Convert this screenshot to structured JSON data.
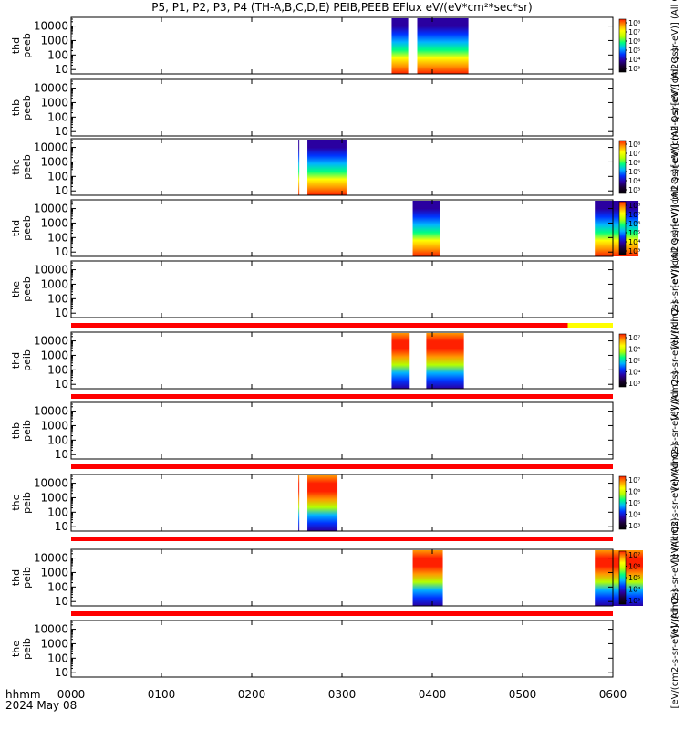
{
  "title": "P5, P1, P2, P3, P4 (TH-A,B,C,D,E) PEIB,PEEB EFlux eV/(eV*cm²*sec*sr)",
  "colors": {
    "flag_red": "#ff0000",
    "flag_yellow": "#ffff00",
    "spectrogram_ramp": [
      "#1a0033",
      "#2a00a0",
      "#0033ff",
      "#00b4ff",
      "#00ff80",
      "#b4ff00",
      "#ffff00",
      "#ff9900",
      "#ff2000"
    ]
  },
  "footer": {
    "x_axis_label": "hhmm",
    "date_label": "2024 May 08"
  },
  "chart_data": {
    "type": "heatmap",
    "xlim": [
      "0000",
      "0600"
    ],
    "x_tick_labels": [
      "0000",
      "0100",
      "0200",
      "0300",
      "0400",
      "0500",
      "0600"
    ],
    "y_scale": "log",
    "ylim": [
      5,
      40000
    ],
    "y_tick_labels": [
      "10",
      "100",
      "1000",
      "10000"
    ],
    "panels": [
      {
        "label_top": "thd",
        "label_bottom": "peeb",
        "has_data": true,
        "colorbar": {
          "label": "[eV/(cm2-s-sr-eV)] (All Qs)",
          "tick_labels": [
            "10³",
            "10⁴",
            "10⁵",
            "10⁶",
            "10⁷",
            "10⁸"
          ]
        },
        "blocks": [
          {
            "start": "0333",
            "end": "0344"
          },
          {
            "start": "0350",
            "end": "0384"
          }
        ]
      },
      {
        "label_top": "thb",
        "label_bottom": "peeb",
        "has_data": false,
        "colorbar": {
          "label": "[eV/(cm2-s-sr-eV)] (All Qs)",
          "tick_labels": []
        },
        "blocks": []
      },
      {
        "label_top": "thc",
        "label_bottom": "peeb",
        "has_data": true,
        "colorbar": {
          "label": "[eV/(cm2-s-sr-eV)] (All Qs)",
          "tick_labels": [
            "10³",
            "10⁴",
            "10⁵",
            "10⁶",
            "10⁷",
            "10⁸"
          ]
        },
        "blocks": [
          {
            "start": "0191",
            "end": "0220"
          },
          {
            "start": "0237",
            "end": "0263"
          }
        ]
      },
      {
        "label_top": "thd",
        "label_bottom": "peeb",
        "has_data": true,
        "colorbar": {
          "label": "[eV/(cm2-s-sr-eV)] (All Qs)",
          "tick_labels": [
            "10³",
            "10⁴",
            "10⁵",
            "10⁶",
            "10⁷",
            "10⁸"
          ]
        },
        "blocks": [
          {
            "start": "0347",
            "end": "0365"
          },
          {
            "start": "0548",
            "end": "0577"
          }
        ]
      },
      {
        "label_top": "the",
        "label_bottom": "peeb",
        "has_data": false,
        "colorbar": {
          "label": "[eV/(cm2-s-sr-eV)] (All Qs)",
          "tick_labels": []
        },
        "blocks": []
      },
      {
        "label_top": "thd",
        "label_bottom": "peib",
        "has_data": true,
        "colorbar": {
          "label": "[eV/(cm2-s-sr-eV)] (All Qs)",
          "tick_labels": [
            "10³",
            "10⁴",
            "10⁵",
            "10⁶",
            "10⁷"
          ]
        },
        "blocks": [
          {
            "start": "0333",
            "end": "0345"
          },
          {
            "start": "0356",
            "end": "0381"
          }
        ]
      },
      {
        "label_top": "thb",
        "label_bottom": "peib",
        "has_data": false,
        "colorbar": {
          "label": "[eV/(cm2-s-sr-eV)] (All Qs)",
          "tick_labels": []
        },
        "blocks": []
      },
      {
        "label_top": "thc",
        "label_bottom": "peib",
        "has_data": true,
        "colorbar": {
          "label": "[eV/(cm2-s-sr-eV)] (All Qs)",
          "tick_labels": [
            "10³",
            "10⁴",
            "10⁵",
            "10⁶",
            "10⁷"
          ]
        },
        "blocks": [
          {
            "start": "0191",
            "end": "0220"
          },
          {
            "start": "0237",
            "end": "0257"
          }
        ]
      },
      {
        "label_top": "thd",
        "label_bottom": "peib",
        "has_data": true,
        "colorbar": {
          "label": "[eV/(cm2-s-sr-eV)] (All Qs)",
          "tick_labels": [
            "10³",
            "10⁴",
            "10⁵",
            "10⁶",
            "10⁷"
          ]
        },
        "blocks": [
          {
            "start": "0347",
            "end": "0367"
          },
          {
            "start": "0548",
            "end": "0580"
          }
        ]
      },
      {
        "label_top": "the",
        "label_bottom": "peib",
        "has_data": false,
        "colorbar": {
          "label": "[eV/(cm2-s-sr-eV)] (All Qs)",
          "tick_labels": []
        },
        "blocks": []
      }
    ],
    "flag_bars": [
      {
        "after_panel": 5,
        "segments": [
          {
            "start": "0000",
            "end": "0530",
            "color": "red"
          },
          {
            "start": "0530",
            "end": "0600",
            "color": "yellow"
          }
        ]
      },
      {
        "after_panel": 6,
        "segments": [
          {
            "start": "0000",
            "end": "0600",
            "color": "red"
          }
        ]
      },
      {
        "after_panel": 7,
        "segments": [
          {
            "start": "0000",
            "end": "0600",
            "color": "red"
          }
        ]
      },
      {
        "after_panel": 8,
        "segments": [
          {
            "start": "0000",
            "end": "0600",
            "color": "red"
          }
        ]
      },
      {
        "after_panel": 9,
        "segments": [
          {
            "start": "0000",
            "end": "0600",
            "color": "red"
          }
        ]
      }
    ]
  }
}
